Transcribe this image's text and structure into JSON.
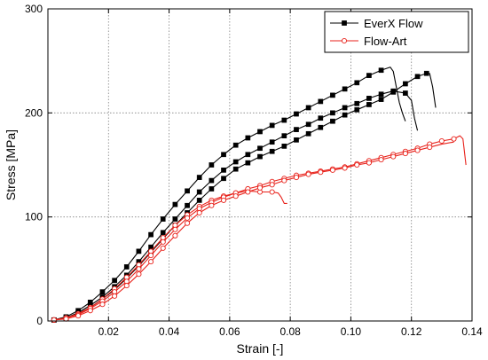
{
  "chart_data": {
    "type": "line",
    "xlabel": "Strain [-]",
    "ylabel": "Stress [MPa]",
    "xlim": [
      0,
      0.14
    ],
    "ylim": [
      0,
      300
    ],
    "x_ticks": [
      0.02,
      0.04,
      0.06,
      0.08,
      0.1,
      0.12,
      0.14
    ],
    "x_tick_labels": [
      "0.02",
      "0.04",
      "0.06",
      "0.08",
      "0.10",
      "0.12",
      "0.14"
    ],
    "y_ticks": [
      0,
      100,
      200,
      300
    ],
    "y_tick_labels": [
      "0",
      "100",
      "200",
      "300"
    ],
    "grid": true,
    "legend_position": "top-right",
    "legend": [
      {
        "label": "EverX Flow",
        "color": "#000000",
        "marker": "square-filled"
      },
      {
        "label": "Flow-Art",
        "color": "#e8221b",
        "marker": "circle-open"
      }
    ],
    "series": [
      {
        "group": "EverX Flow",
        "color": "#000000",
        "marker": "square-filled",
        "x": [
          0.002,
          0.006,
          0.01,
          0.014,
          0.018,
          0.022,
          0.026,
          0.03,
          0.034,
          0.038,
          0.042,
          0.046,
          0.05,
          0.054,
          0.058,
          0.062,
          0.066,
          0.07,
          0.074,
          0.078,
          0.082,
          0.086,
          0.09,
          0.094,
          0.098,
          0.102,
          0.106,
          0.11,
          0.113,
          0.114,
          0.115,
          0.116,
          0.117,
          0.118
        ],
        "y": [
          1,
          4,
          10,
          18,
          28,
          39,
          52,
          67,
          83,
          98,
          112,
          125,
          138,
          150,
          160,
          169,
          176,
          182,
          188,
          193,
          199,
          205,
          211,
          217,
          223,
          229,
          236,
          241,
          244,
          240,
          225,
          210,
          200,
          192
        ],
        "marker_count": 28
      },
      {
        "group": "EverX Flow",
        "color": "#000000",
        "marker": "square-filled",
        "x": [
          0.002,
          0.006,
          0.01,
          0.014,
          0.018,
          0.022,
          0.026,
          0.03,
          0.034,
          0.038,
          0.042,
          0.046,
          0.05,
          0.054,
          0.058,
          0.062,
          0.066,
          0.07,
          0.074,
          0.078,
          0.082,
          0.086,
          0.09,
          0.094,
          0.098,
          0.102,
          0.106,
          0.11,
          0.114,
          0.118,
          0.12,
          0.121,
          0.122
        ],
        "y": [
          1,
          3,
          8,
          15,
          23,
          33,
          44,
          57,
          71,
          85,
          98,
          111,
          124,
          135,
          145,
          153,
          160,
          166,
          172,
          178,
          184,
          189,
          195,
          200,
          205,
          209,
          214,
          218,
          221,
          219,
          212,
          195,
          183
        ],
        "marker_count": 30
      },
      {
        "group": "EverX Flow",
        "color": "#000000",
        "marker": "square-filled",
        "x": [
          0.002,
          0.006,
          0.01,
          0.014,
          0.018,
          0.022,
          0.026,
          0.03,
          0.034,
          0.038,
          0.042,
          0.046,
          0.05,
          0.054,
          0.058,
          0.062,
          0.066,
          0.07,
          0.074,
          0.078,
          0.082,
          0.086,
          0.09,
          0.094,
          0.098,
          0.102,
          0.106,
          0.11,
          0.114,
          0.118,
          0.122,
          0.125,
          0.126,
          0.127,
          0.128
        ],
        "y": [
          1,
          3,
          7,
          13,
          21,
          30,
          41,
          53,
          66,
          79,
          92,
          104,
          116,
          127,
          137,
          146,
          152,
          158,
          163,
          168,
          174,
          180,
          186,
          192,
          198,
          203,
          208,
          213,
          220,
          228,
          235,
          238,
          238,
          225,
          205
        ],
        "marker_count": 32
      },
      {
        "group": "Flow-Art",
        "color": "#e8221b",
        "marker": "circle-open",
        "x": [
          0.002,
          0.006,
          0.01,
          0.014,
          0.018,
          0.022,
          0.026,
          0.03,
          0.034,
          0.038,
          0.042,
          0.046,
          0.05,
          0.054,
          0.058,
          0.062,
          0.066,
          0.07,
          0.074,
          0.076,
          0.077,
          0.078,
          0.079
        ],
        "y": [
          1,
          3,
          7,
          13,
          21,
          31,
          42,
          54,
          67,
          80,
          92,
          102,
          110,
          116,
          120,
          123,
          125,
          124,
          124,
          123,
          119,
          113,
          113
        ],
        "marker_count": 19
      },
      {
        "group": "Flow-Art",
        "color": "#e8221b",
        "marker": "circle-open",
        "x": [
          0.002,
          0.006,
          0.01,
          0.014,
          0.018,
          0.022,
          0.026,
          0.03,
          0.034,
          0.038,
          0.042,
          0.046,
          0.05,
          0.054,
          0.058,
          0.062,
          0.066,
          0.07,
          0.074,
          0.078,
          0.082,
          0.086,
          0.09,
          0.094,
          0.098,
          0.102,
          0.106,
          0.11,
          0.114,
          0.118,
          0.122,
          0.126,
          0.13,
          0.134,
          0.136,
          0.137,
          0.138
        ],
        "y": [
          1,
          3,
          6,
          12,
          19,
          28,
          38,
          50,
          63,
          76,
          88,
          99,
          108,
          114,
          119,
          123,
          127,
          130,
          134,
          137,
          140,
          142,
          144,
          146,
          148,
          151,
          154,
          157,
          160,
          163,
          166,
          170,
          173,
          175,
          178,
          175,
          150
        ],
        "marker_count": 34
      },
      {
        "group": "Flow-Art",
        "color": "#e8221b",
        "marker": "circle-open",
        "x": [
          0.002,
          0.006,
          0.01,
          0.014,
          0.018,
          0.022,
          0.026,
          0.03,
          0.034,
          0.038,
          0.042,
          0.046,
          0.05,
          0.054,
          0.058,
          0.062,
          0.066,
          0.07,
          0.074,
          0.078,
          0.082,
          0.086,
          0.09,
          0.094,
          0.098,
          0.102,
          0.106,
          0.11,
          0.114,
          0.118,
          0.122,
          0.126,
          0.13,
          0.134
        ],
        "y": [
          1,
          2,
          5,
          10,
          16,
          24,
          34,
          45,
          57,
          70,
          82,
          94,
          104,
          111,
          116,
          120,
          124,
          128,
          131,
          135,
          138,
          141,
          143,
          145,
          147,
          150,
          152,
          155,
          158,
          161,
          164,
          167,
          170,
          172
        ],
        "marker_count": 32
      }
    ]
  }
}
